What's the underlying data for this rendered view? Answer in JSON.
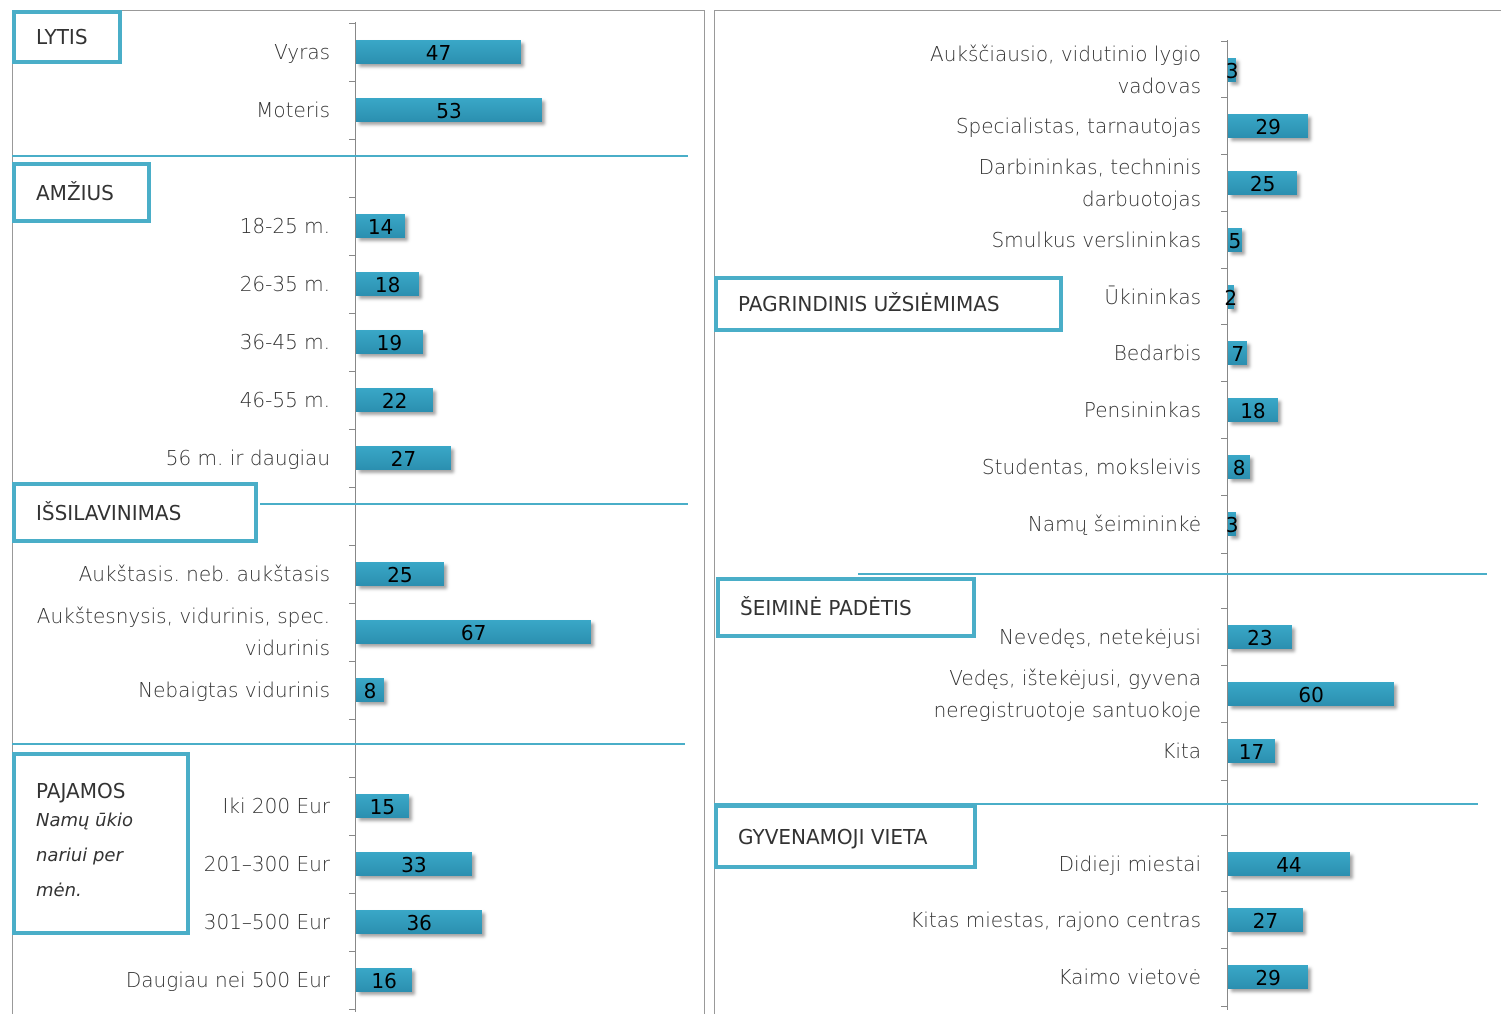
{
  "chart_data": [
    {
      "type": "bar",
      "title": "LYTIS",
      "categories": [
        "Vyras",
        "Moteris"
      ],
      "values": [
        47,
        53
      ],
      "color": "#3aa8c8"
    },
    {
      "type": "bar",
      "title": "AMŽIUS",
      "categories": [
        "18-25 m.",
        "26-35 m.",
        "36-45 m.",
        "46-55 m.",
        "56 m. ir daugiau"
      ],
      "values": [
        14,
        18,
        19,
        22,
        27
      ],
      "color": "#3aa8c8"
    },
    {
      "type": "bar",
      "title": "IŠSILAVINIMAS",
      "categories": [
        "Aukštasis. neb. aukštasis",
        "Aukštesnysis, vidurinis, spec. vidurinis",
        "Nebaigtas vidurinis"
      ],
      "values": [
        25,
        67,
        8
      ],
      "color": "#3aa8c8"
    },
    {
      "type": "bar",
      "title": "PAJAMOS",
      "subtitle": "Namų ūkio nariui per mėn.",
      "categories": [
        "Iki 200 Eur",
        "201–300 Eur",
        "301–500 Eur",
        "Daugiau nei 500 Eur"
      ],
      "values": [
        15,
        33,
        36,
        16
      ],
      "color": "#3aa8c8"
    },
    {
      "type": "bar",
      "title": "PAGRINDINIS UŽSIĖMIMAS",
      "categories": [
        "Aukščiausio, vidutinio lygio vadovas",
        "Specialistas, tarnautojas",
        "Darbininkas, techninis darbuotojas",
        "Smulkus verslininkas",
        "Ūkininkas",
        "Bedarbis",
        "Pensininkas",
        "Studentas, moksleivis",
        "Namų šeimininkė"
      ],
      "values": [
        3,
        29,
        25,
        5,
        2,
        7,
        18,
        8,
        3
      ],
      "color": "#3aa8c8"
    },
    {
      "type": "bar",
      "title": "ŠEIMINĖ PADĖTIS",
      "categories": [
        "Nevedęs, netekėjusi",
        "Vedęs, ištekėjusi, gyvena neregistruotoje santuokoje",
        "Kita"
      ],
      "values": [
        23,
        60,
        17
      ],
      "color": "#3aa8c8"
    },
    {
      "type": "bar",
      "title": "GYVENAMOJI VIETA",
      "categories": [
        "Didieji miestai",
        "Kitas miestas, rajono centras",
        "Kaimo vietovė"
      ],
      "values": [
        44,
        27,
        29
      ],
      "color": "#3aa8c8"
    }
  ]
}
